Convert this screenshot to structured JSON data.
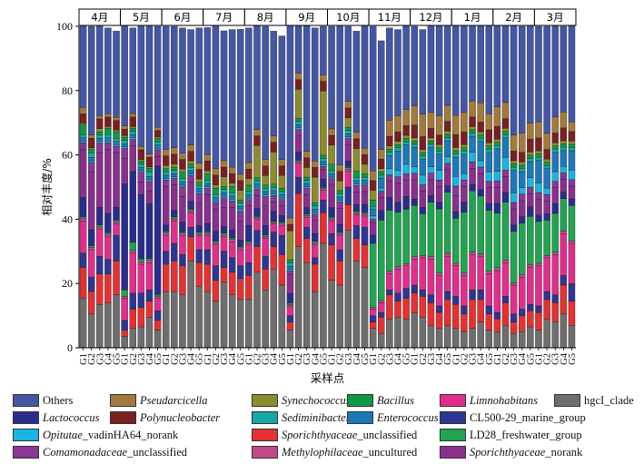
{
  "chart_data": {
    "type": "bar",
    "stacked": true,
    "ylabel": "相对丰度/%",
    "xlabel": "采样点",
    "ylim": [
      0,
      100
    ],
    "yticks": [
      0,
      20,
      40,
      60,
      80,
      100
    ],
    "months": [
      "4月",
      "5月",
      "6月",
      "7月",
      "8月",
      "9月",
      "10月",
      "11月",
      "12月",
      "1月",
      "2月",
      "3月"
    ],
    "site_labels": [
      "G1",
      "G2",
      "G3",
      "G4",
      "G5"
    ],
    "categories": [
      "G1",
      "G2",
      "G3",
      "G4",
      "G5",
      "G1",
      "G2",
      "G3",
      "G4",
      "G5",
      "G1",
      "G2",
      "G3",
      "G4",
      "G5",
      "G1",
      "G2",
      "G3",
      "G4",
      "G5",
      "G1",
      "G2",
      "G3",
      "G4",
      "G5",
      "G1",
      "G2",
      "G3",
      "G4",
      "G5",
      "G1",
      "G2",
      "G3",
      "G4",
      "G5",
      "G1",
      "G2",
      "G3",
      "G4",
      "G5",
      "G1",
      "G2",
      "G3",
      "G4",
      "G5",
      "G1",
      "G2",
      "G3",
      "G4",
      "G5",
      "G1",
      "G2",
      "G3",
      "G4",
      "G5",
      "G1",
      "G2",
      "G3",
      "G4",
      "G5"
    ],
    "legend_position": "bottom",
    "series": [
      {
        "name": "hgcI_clade",
        "color": "#6e6e6e",
        "values": [
          15.5,
          10.5,
          13.5,
          14,
          16.5,
          3.5,
          6,
          6.5,
          9.5,
          5.5,
          17.5,
          17.5,
          16.5,
          27,
          19,
          17.5,
          14.5,
          20.5,
          16.5,
          15,
          15,
          23.5,
          18,
          24.5,
          19.5,
          5.5,
          31.5,
          26.5,
          17.5,
          32.5,
          21,
          19.5,
          36.5,
          27,
          25,
          6,
          4.5,
          9,
          9.5,
          9,
          11,
          9.5,
          7,
          6,
          7,
          6,
          5,
          6,
          8,
          5.5,
          5,
          7,
          4.5,
          5,
          6.5,
          5.5,
          9,
          8,
          10.5,
          7
        ]
      },
      {
        "name": "Sporichthyaceae_unclassified",
        "color": "#e53131",
        "values": [
          9.5,
          7,
          9.5,
          9,
          10.5,
          2,
          6,
          6,
          5,
          3,
          8.5,
          9.5,
          9,
          7.5,
          7.5,
          8.5,
          6.5,
          4.5,
          7,
          6.5,
          7.5,
          8,
          6.5,
          7,
          9.5,
          2.5,
          16.5,
          7.5,
          8.5,
          9.5,
          11,
          7.5,
          8,
          7,
          7,
          2,
          5,
          7.5,
          5,
          6.5,
          6,
          6.5,
          7,
          5,
          8,
          7.5,
          5.5,
          9,
          7,
          5,
          4,
          7,
          3.5,
          5,
          5,
          5.5,
          6,
          6,
          9,
          7.5
        ]
      },
      {
        "name": "CL500-29_marine_group",
        "color": "#2e3592",
        "values": [
          4.5,
          4.5,
          5.5,
          4.5,
          8,
          3,
          5,
          4.5,
          3.5,
          3,
          4,
          5.5,
          3.5,
          3,
          4,
          4.5,
          4.5,
          5,
          4.5,
          4,
          4,
          5,
          4,
          4.5,
          6,
          2,
          5,
          3.5,
          2,
          4,
          3.5,
          3.5,
          5.5,
          4,
          5.5,
          2,
          1.5,
          1.5,
          2.5,
          3,
          2.5,
          2,
          2.5,
          2,
          2.5,
          2.5,
          2.5,
          3,
          3,
          2.5,
          2,
          2,
          2.5,
          2,
          2,
          2,
          2.5,
          2.5,
          3,
          5.5
        ]
      },
      {
        "name": "Limnohabitans",
        "color": "#e12e8c",
        "values": [
          10,
          8.5,
          8.5,
          7,
          3.5,
          7,
          12.5,
          9,
          8.5,
          4,
          5,
          7,
          6,
          4.5,
          4.5,
          4.5,
          6.5,
          4.5,
          5,
          5,
          5.5,
          3.5,
          5.5,
          2.5,
          3,
          3,
          4.5,
          3,
          4,
          3,
          4,
          4.5,
          5,
          3.5,
          3.5,
          2,
          3,
          5,
          7.5,
          7,
          8,
          10,
          11,
          9.5,
          11,
          9.5,
          9.5,
          11,
          10.5,
          10,
          13,
          10.5,
          9,
          10,
          11.5,
          12.5,
          10.5,
          12.5,
          13,
          12.5
        ]
      },
      {
        "name": "Methylophilaceae_uncultured",
        "color": "#c14a88",
        "values": [
          0.8,
          0.7,
          0.6,
          0.8,
          0.7,
          0.5,
          0.8,
          0.8,
          0.7,
          0.6,
          0.7,
          0.6,
          0.7,
          0.6,
          0.5,
          0.6,
          0.7,
          0.6,
          0.7,
          0.6,
          0.6,
          0.5,
          0.6,
          0.5,
          0.6,
          0.4,
          0.5,
          0.6,
          0.5,
          0.5,
          0.6,
          0.5,
          0.6,
          0.5,
          0.6,
          0.5,
          0.7,
          0.8,
          0.7,
          0.6,
          0.8,
          0.7,
          0.8,
          0.7,
          0.9,
          0.8,
          0.7,
          0.8,
          0.7,
          0.8,
          0.9,
          0.8,
          0.7,
          0.8,
          0.9,
          0.8,
          0.7,
          0.8,
          0.9,
          0.8
        ]
      },
      {
        "name": "LD28_freshwater_group",
        "color": "#20a450",
        "values": [
          0.5,
          0.5,
          0.6,
          0.5,
          0.5,
          2,
          2.5,
          0.8,
          0.6,
          0.5,
          0.5,
          0.6,
          0.4,
          0.5,
          0.5,
          0.5,
          0.5,
          0.6,
          0.5,
          0.4,
          0.5,
          0.4,
          0.5,
          0.4,
          0.5,
          0.5,
          0.4,
          0.5,
          0.6,
          0.4,
          0.5,
          0.4,
          0.5,
          0.5,
          0.5,
          20,
          25,
          19,
          17,
          17,
          16,
          13,
          17,
          20,
          19,
          14,
          19,
          19,
          18,
          19,
          17,
          18,
          16,
          16,
          15,
          13,
          11,
          12,
          10,
          11
        ]
      },
      {
        "name": "Lactococcus",
        "color": "#2b2d8c",
        "values": [
          6,
          5,
          5.5,
          6,
          4,
          33,
          22,
          20,
          17,
          40,
          2,
          2,
          3,
          2.5,
          2,
          2.5,
          3,
          2,
          2.5,
          2,
          5,
          2.5,
          3,
          3,
          2,
          3,
          2.5,
          2,
          2.5,
          2.5,
          3,
          2.5,
          2,
          2,
          2.5,
          2.5,
          3,
          4,
          3,
          4,
          2,
          2,
          2,
          2,
          2,
          2,
          3,
          2,
          2,
          2,
          3,
          3,
          2,
          2,
          3,
          2,
          2,
          3,
          2,
          2
        ]
      },
      {
        "name": "Sporichthyaceae_norank",
        "color": "#8a2f8e",
        "values": [
          15,
          18,
          17,
          20,
          17,
          8,
          8,
          4,
          4,
          3,
          12,
          8,
          8,
          6,
          7,
          9,
          7,
          6,
          7,
          6,
          6,
          4,
          6,
          3,
          3,
          6,
          5,
          4,
          4,
          3,
          7,
          5,
          5,
          4,
          4,
          4,
          4,
          5,
          6,
          5,
          6,
          5,
          5,
          5,
          5,
          5,
          5,
          5,
          5,
          5,
          5,
          5,
          5,
          5,
          4,
          5,
          4,
          5,
          4,
          4
        ]
      },
      {
        "name": "Comamonadaceae_unclassified",
        "color": "#8a3795",
        "values": [
          2,
          3,
          3,
          2,
          2,
          3,
          2,
          3,
          3,
          2,
          2,
          2,
          3,
          2,
          3,
          2,
          2,
          3,
          2,
          3,
          2,
          2,
          3,
          2,
          2,
          1,
          2,
          2,
          2,
          1,
          2,
          2,
          2,
          2,
          2,
          1,
          2,
          2,
          2,
          2,
          2,
          2,
          2,
          2,
          2,
          3,
          2,
          2,
          2,
          2,
          2,
          2,
          2,
          2,
          2,
          2,
          2,
          2,
          2,
          2
        ]
      },
      {
        "name": "Opitutae_vadinHA64_norank",
        "color": "#1bb4e0",
        "values": [
          0.5,
          0.5,
          0.5,
          0.5,
          0.5,
          0.5,
          0.5,
          0.5,
          0.5,
          0.5,
          0.5,
          0.5,
          0.5,
          0.5,
          0.5,
          0.5,
          0.5,
          0.5,
          0.5,
          0.5,
          0.5,
          0.5,
          0.5,
          0.5,
          0.5,
          0.5,
          0.5,
          0.5,
          0.5,
          0.5,
          0.5,
          0.5,
          0.5,
          0.5,
          0.5,
          1,
          1,
          2,
          2,
          3,
          2,
          3,
          2,
          3,
          2,
          3,
          2,
          3,
          2,
          3,
          3,
          4,
          3,
          2,
          3,
          3,
          2,
          3,
          2,
          3
        ]
      },
      {
        "name": "Enterococcus",
        "color": "#1d78ba",
        "values": [
          1,
          1,
          1,
          1,
          1,
          1,
          1,
          1,
          1,
          1,
          1,
          1,
          1,
          1,
          1,
          1,
          1,
          1,
          1,
          1,
          1,
          1,
          1,
          1,
          1,
          1,
          1,
          1,
          1,
          1,
          1,
          1,
          1,
          1,
          1,
          2,
          3,
          4,
          6,
          6,
          6,
          5,
          6,
          5,
          5,
          6,
          6,
          5,
          6,
          6,
          7,
          6,
          7,
          5,
          5,
          7,
          6,
          6,
          5,
          6
        ]
      },
      {
        "name": "Sediminibacterium",
        "color": "#14a9a5",
        "values": [
          1,
          1.5,
          1,
          1,
          1,
          1,
          1,
          1,
          1.5,
          1,
          1,
          1,
          1,
          1,
          1,
          1,
          1,
          1,
          1,
          1,
          1,
          1,
          1,
          1,
          1,
          1,
          1,
          1,
          1,
          1,
          1,
          1,
          1,
          1,
          1,
          1,
          1,
          1,
          1,
          1,
          1,
          1,
          1,
          1,
          1,
          1,
          1,
          1,
          1,
          1,
          1,
          1,
          1,
          1,
          1,
          1,
          1,
          1,
          1,
          1
        ]
      },
      {
        "name": "Bacillus",
        "color": "#0e9a45",
        "values": [
          3,
          1,
          1,
          2,
          2,
          1,
          1,
          1,
          1,
          1,
          1,
          1,
          2,
          1,
          1,
          2,
          2,
          1,
          2,
          1,
          2,
          1,
          1,
          1,
          1,
          1,
          1,
          1,
          1,
          1,
          2,
          1,
          1,
          2,
          1,
          2,
          1,
          1,
          1,
          1,
          1,
          1,
          1,
          1,
          1,
          1,
          1,
          1,
          1,
          1,
          1,
          1,
          1,
          1,
          1,
          1,
          1,
          1,
          1,
          1
        ]
      },
      {
        "name": "Synechococcus",
        "color": "#8c8c2e",
        "values": [
          0.5,
          0.5,
          1,
          0.5,
          0.5,
          0.5,
          0.5,
          0.5,
          0.5,
          0.5,
          1,
          1,
          1,
          1,
          1,
          1,
          1,
          3,
          1,
          3,
          2,
          10,
          3,
          10,
          4,
          9,
          9,
          3,
          8,
          20,
          6,
          3,
          3,
          7,
          3,
          3,
          1,
          1,
          1,
          1,
          1,
          1,
          1,
          1,
          1,
          1,
          1,
          1,
          1,
          1,
          1,
          1,
          1,
          1,
          1,
          1,
          1,
          1,
          1,
          1
        ]
      },
      {
        "name": "Polynucleobacter",
        "color": "#7a2020",
        "values": [
          3,
          3,
          3,
          3,
          3,
          2,
          3,
          3,
          3,
          2,
          3,
          3,
          3,
          3,
          3,
          3,
          3,
          3,
          3,
          3,
          3,
          3,
          3,
          3,
          3,
          2,
          3,
          3,
          3,
          3,
          3,
          3,
          3,
          3,
          3,
          3,
          3,
          3,
          3,
          3,
          4,
          4,
          3,
          3,
          3,
          4,
          4,
          3,
          3,
          4,
          4,
          3,
          3,
          3,
          4,
          4,
          3,
          3,
          4,
          3
        ]
      },
      {
        "name": "Pseudarcicella",
        "color": "#a47a3c",
        "values": [
          2,
          1,
          1,
          1,
          1,
          1,
          1,
          1,
          1,
          1,
          2,
          2,
          2,
          2,
          2,
          2,
          2,
          2,
          2,
          2,
          2,
          2,
          2,
          2,
          2,
          2,
          2,
          2,
          2,
          2,
          2,
          2,
          2,
          2,
          2,
          3,
          3,
          5,
          5,
          5,
          6,
          7,
          5,
          6,
          5,
          6,
          6,
          5,
          6,
          5,
          6,
          5,
          5,
          6,
          5,
          5,
          5,
          5,
          5,
          3
        ]
      },
      {
        "name": "Others",
        "color": "#4457a6",
        "values": [
          25.7,
          33.8,
          28.3,
          26.7,
          26.8,
          31.5,
          26.7,
          37.9,
          40.2,
          31.4,
          38.3,
          37.8,
          38.9,
          35.9,
          42,
          39.5,
          45.8,
          40.4,
          42.8,
          45.1,
          41.9,
          33.1,
          41.4,
          32.6,
          38.4,
          60.6,
          15.6,
          39,
          41.4,
          15.1,
          31.9,
          45,
          23.4,
          31.5,
          40.4,
          45,
          33.8,
          28.7,
          26.8,
          28.4,
          24.7,
          26.3,
          27.7,
          28.3,
          26.6,
          28.7,
          30.3,
          28.2,
          28.3,
          30.2,
          27.1,
          26.7,
          35.3,
          33.2,
          30.6,
          29.7,
          33.3,
          28.7,
          26.6,
          34.2
        ]
      }
    ]
  },
  "legend": {
    "items": [
      {
        "label": "Others",
        "italic": "",
        "color": "#4457a6"
      },
      {
        "label": "",
        "italic": "Pseudarcicella",
        "color": "#a47a3c"
      },
      {
        "label": "",
        "italic": "Synechococcus",
        "color": "#8c8c2e"
      },
      {
        "label": "",
        "italic": "Bacillus",
        "color": "#0e9a45"
      },
      {
        "label": "",
        "italic": "Limnohabitans",
        "color": "#e12e8c"
      },
      {
        "label": "hgcI_clade",
        "italic": "",
        "color": "#6e6e6e"
      },
      {
        "label": "",
        "italic": "Lactococcus",
        "color": "#2b2d8c"
      },
      {
        "label": "",
        "italic": "Polynucleobacter",
        "color": "#7a2020"
      },
      {
        "label": "",
        "italic": "Sediminibacterium",
        "color": "#14a9a5"
      },
      {
        "label": "",
        "italic": "Enterococcus",
        "color": "#1d78ba"
      },
      {
        "label": "CL500-29_marine_group",
        "italic": "",
        "color": "#2e3592"
      },
      {
        "label": "_vadinHA64_norank",
        "italic": "Opitutae",
        "color": "#1bb4e0"
      },
      {
        "label": "_unclassified",
        "italic": "Sporichthyaceae",
        "color": "#e53131"
      },
      {
        "label": "LD28_freshwater_group",
        "italic": "",
        "color": "#20a450"
      },
      {
        "label": "_unclassified",
        "italic": "Comamonadaceae",
        "color": "#8a3795"
      },
      {
        "label": "_uncultured",
        "italic": "Methylophilaceae",
        "color": "#c14a88"
      },
      {
        "label": "_norank",
        "italic": "Sporichthyaceae",
        "color": "#8a2f8e"
      }
    ]
  }
}
